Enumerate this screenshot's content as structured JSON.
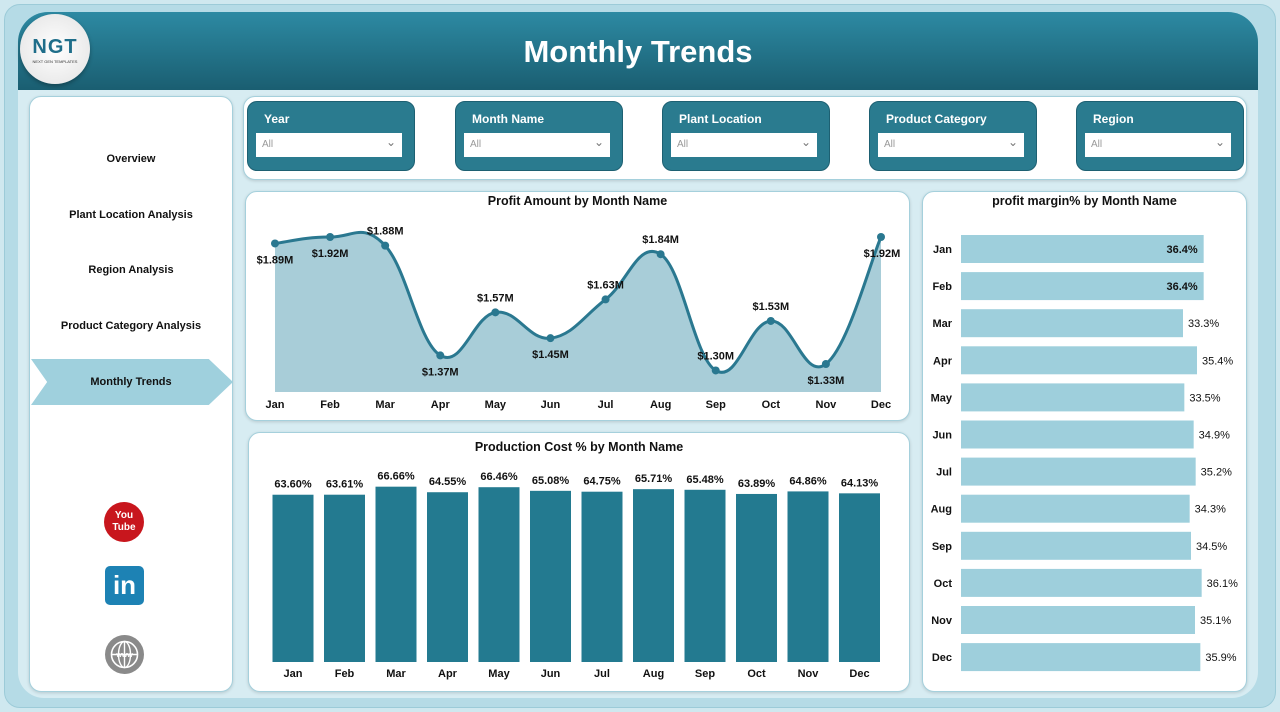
{
  "header": {
    "title": "Monthly Trends",
    "logo_text": "NGT",
    "logo_subtext": "NEXT GEN TEMPLATES"
  },
  "sidebar": {
    "items": [
      {
        "label": "Overview"
      },
      {
        "label": "Plant Location Analysis"
      },
      {
        "label": "Region Analysis"
      },
      {
        "label": "Product Category Analysis"
      },
      {
        "label": "Monthly Trends",
        "active": true
      }
    ],
    "social": [
      "youtube-icon",
      "linkedin-icon",
      "globe-icon"
    ]
  },
  "filters": [
    {
      "label": "Year",
      "value": "All"
    },
    {
      "label": "Month Name",
      "value": "All"
    },
    {
      "label": "Plant Location",
      "value": "All"
    },
    {
      "label": "Product Category",
      "value": "All"
    },
    {
      "label": "Region",
      "value": "All"
    }
  ],
  "colors": {
    "header": "#2a7f98",
    "bar_dark": "#237a90",
    "bar_light": "#9ecfdc",
    "area": "#a8cdd8",
    "line": "#2a7890"
  },
  "chart_data": [
    {
      "type": "area",
      "title": "Profit Amount by Month Name",
      "categories": [
        "Jan",
        "Feb",
        "Mar",
        "Apr",
        "May",
        "Jun",
        "Jul",
        "Aug",
        "Sep",
        "Oct",
        "Nov",
        "Dec"
      ],
      "values": [
        1.89,
        1.92,
        1.88,
        1.37,
        1.57,
        1.45,
        1.63,
        1.84,
        1.3,
        1.53,
        1.33,
        1.92
      ],
      "labels": [
        "$1.89M",
        "$1.92M",
        "$1.88M",
        "$1.37M",
        "$1.57M",
        "$1.45M",
        "$1.63M",
        "$1.84M",
        "$1.30M",
        "$1.53M",
        "$1.33M",
        "$1.92M"
      ],
      "unit": "$M",
      "ylim": [
        1.2,
        1.95
      ],
      "grid": false
    },
    {
      "type": "bar",
      "title": "Production Cost % by Month Name",
      "categories": [
        "Jan",
        "Feb",
        "Mar",
        "Apr",
        "May",
        "Jun",
        "Jul",
        "Aug",
        "Sep",
        "Oct",
        "Nov",
        "Dec"
      ],
      "values": [
        63.6,
        63.61,
        66.66,
        64.55,
        66.46,
        65.08,
        64.75,
        65.71,
        65.48,
        63.89,
        64.86,
        64.13
      ],
      "labels": [
        "63.60%",
        "63.61%",
        "66.66%",
        "64.55%",
        "66.46%",
        "65.08%",
        "64.75%",
        "65.71%",
        "65.48%",
        "63.89%",
        "64.86%",
        "64.13%"
      ],
      "ylim": [
        0,
        73
      ],
      "grid": false
    },
    {
      "type": "bar",
      "orientation": "horizontal",
      "title": "profit margin% by Month Name",
      "categories": [
        "Jan",
        "Feb",
        "Mar",
        "Apr",
        "May",
        "Jun",
        "Jul",
        "Aug",
        "Sep",
        "Oct",
        "Nov",
        "Dec"
      ],
      "values": [
        36.4,
        36.4,
        33.3,
        35.4,
        33.5,
        34.9,
        35.2,
        34.3,
        34.5,
        36.1,
        35.1,
        35.9
      ],
      "labels": [
        "36.4%",
        "36.4%",
        "33.3%",
        "35.4%",
        "33.5%",
        "34.9%",
        "35.2%",
        "34.3%",
        "34.5%",
        "36.1%",
        "35.1%",
        "35.9%"
      ],
      "xlim": [
        0,
        42
      ],
      "grid": false
    }
  ]
}
